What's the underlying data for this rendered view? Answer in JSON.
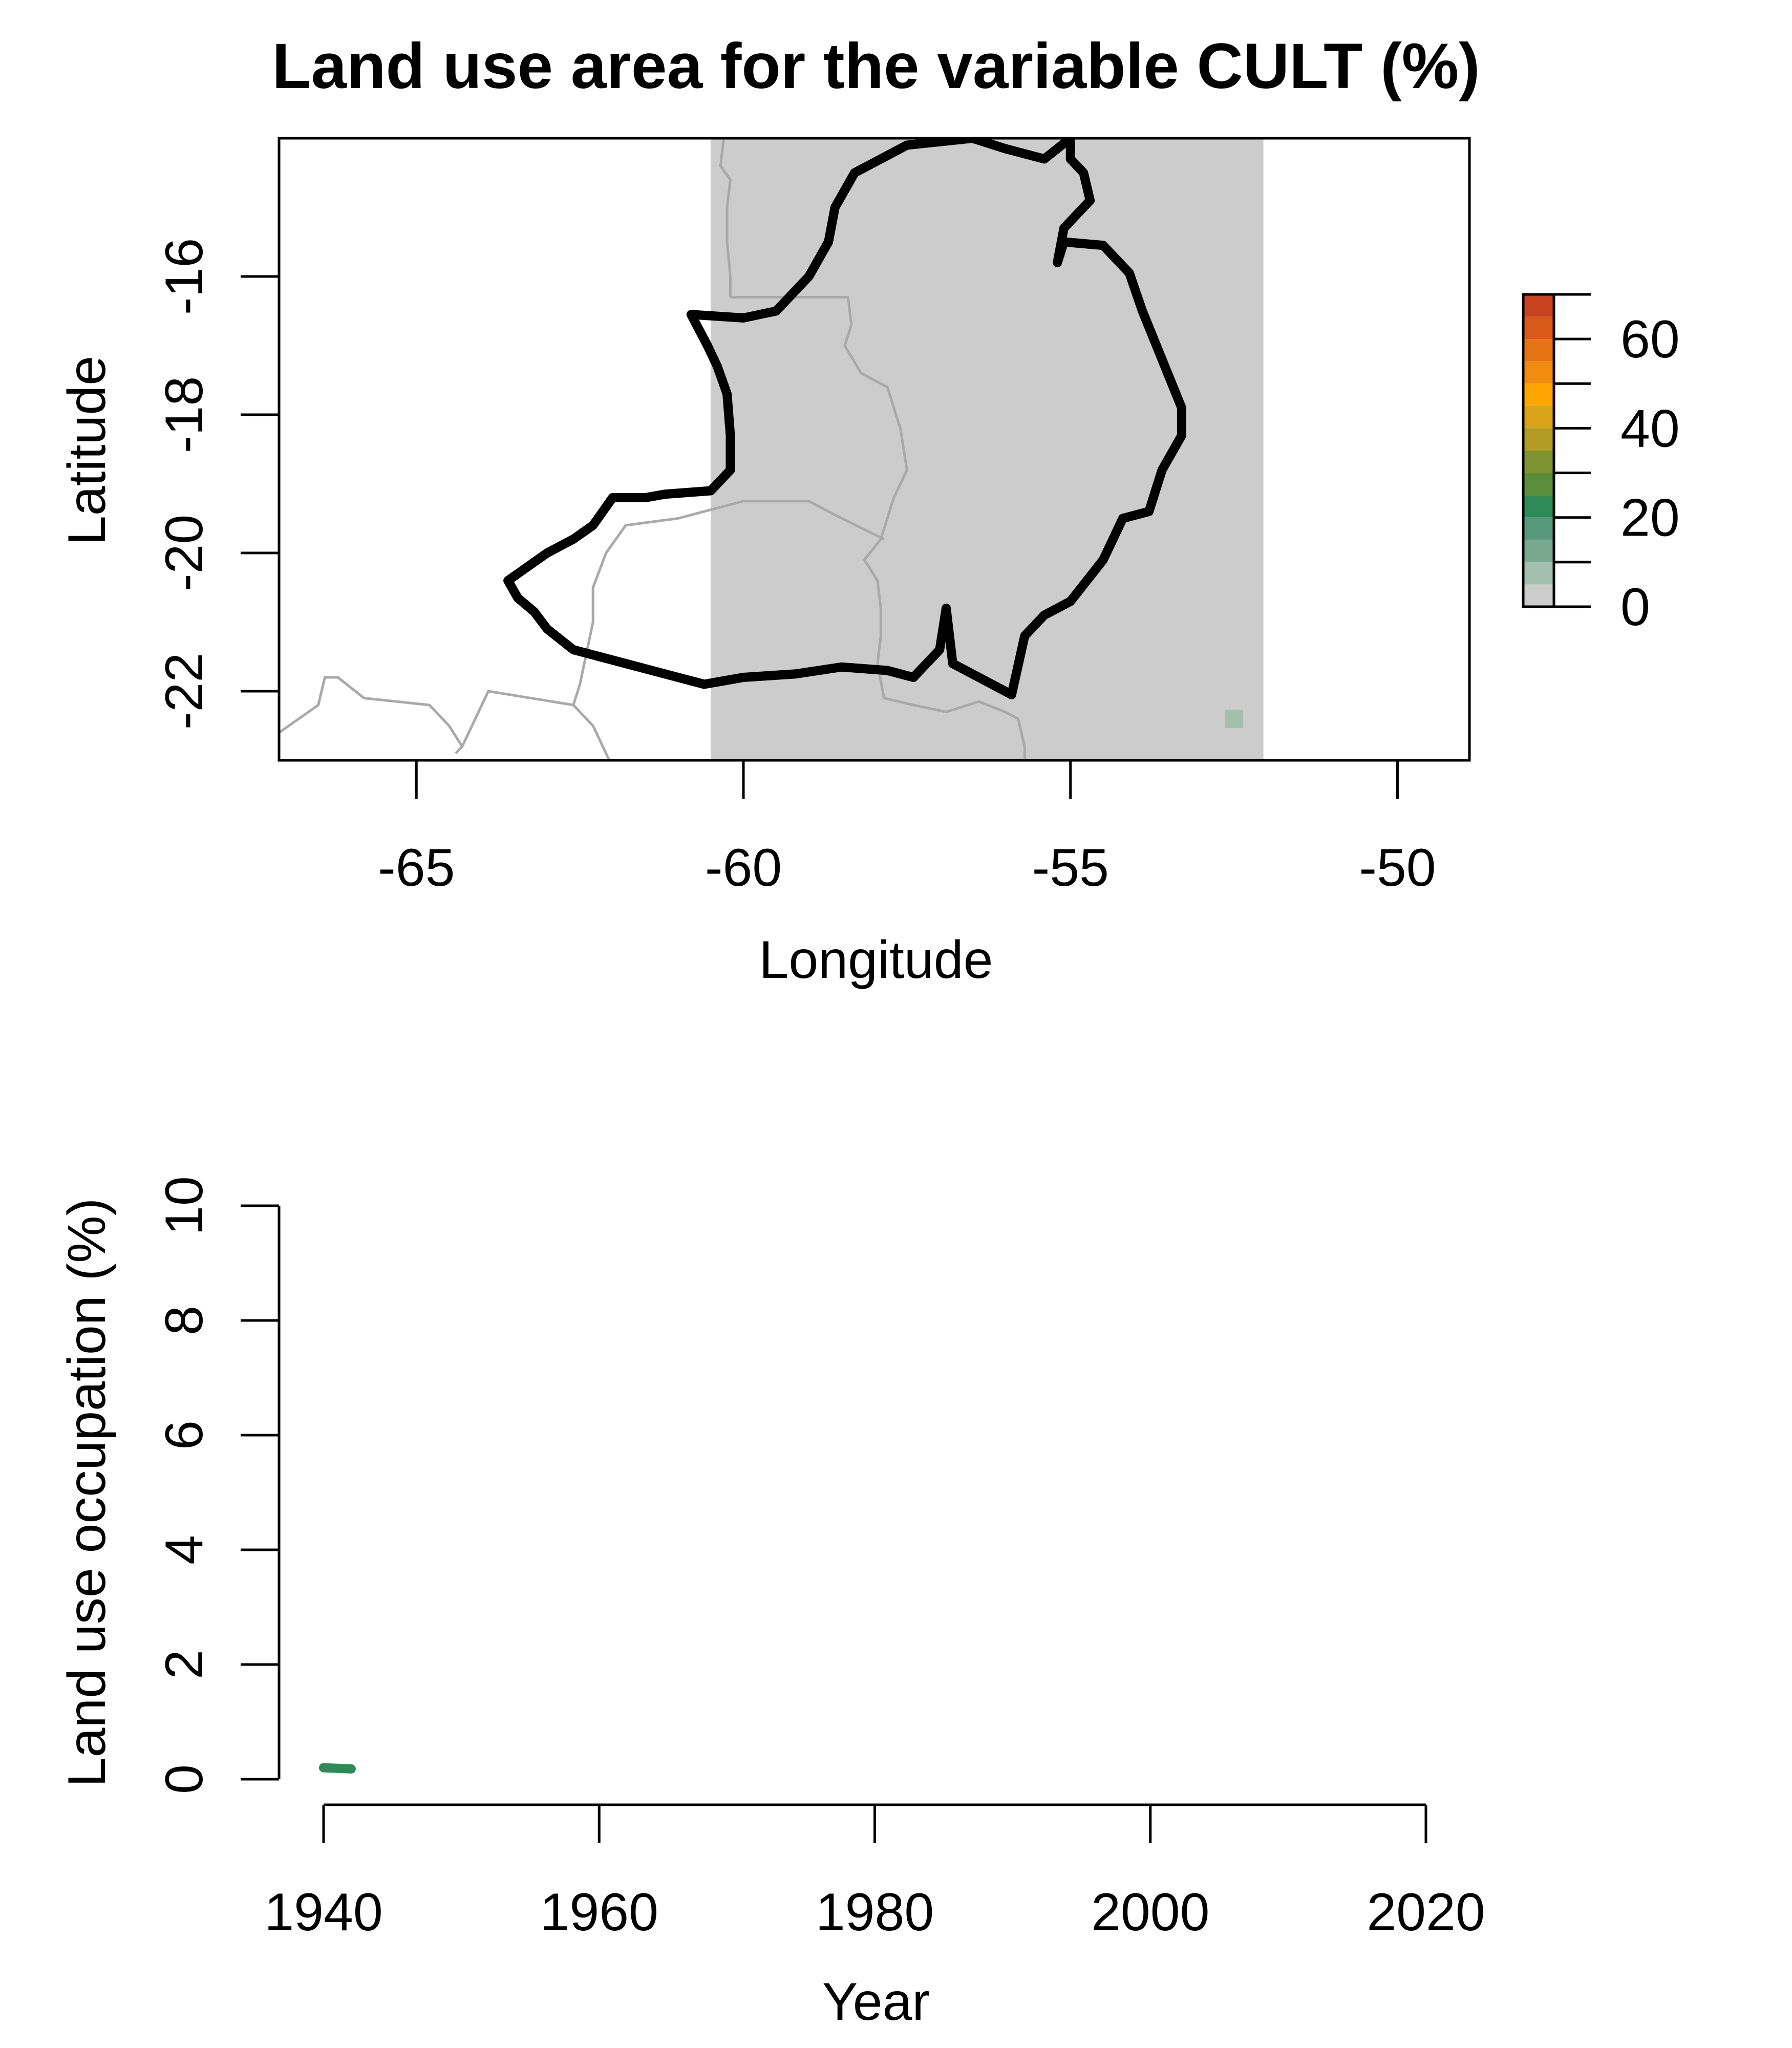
{
  "chart_data": [
    {
      "type": "map",
      "title": "Land use area for the variable CULT (%)",
      "xlabel": "Longitude",
      "ylabel": "Latitude",
      "xlim": [
        -67.1,
        -48.9
      ],
      "ylim": [
        -23.0,
        -14.0
      ],
      "xticks": [
        -65,
        -60,
        -55,
        -50
      ],
      "xtick_labels": [
        "-65",
        "-60",
        "-55",
        "-50"
      ],
      "yticks": [
        -16,
        -18,
        -20,
        -22
      ],
      "ytick_labels": [
        "-16",
        "-18",
        "-20",
        "-22"
      ],
      "raster_extent": {
        "lon": [
          -60.5,
          -52.05
        ],
        "lat": [
          -23.0,
          -14.0
        ]
      },
      "raster_fill_color": "#cccccc",
      "raster_cells": [
        {
          "lon": -52.5,
          "lat": -22.4,
          "value": 5
        }
      ],
      "legend": {
        "placement": "right",
        "breaks": [
          0,
          5,
          10,
          15,
          20,
          25,
          30,
          35,
          40,
          45,
          50,
          55,
          60,
          65,
          70
        ],
        "colors": [
          "#cccccc",
          "#a3bfae",
          "#78a98f",
          "#57977a",
          "#2e8b57",
          "#5b8e3b",
          "#7e9430",
          "#b39c24",
          "#d9a41a",
          "#ffa500",
          "#f28c10",
          "#e57316",
          "#d9591b",
          "#c84220",
          "#b22222"
        ],
        "ticks": [
          0,
          10,
          20,
          30,
          40,
          50,
          60,
          70
        ],
        "labels": [
          {
            "value": 0,
            "text": "0"
          },
          {
            "value": 20,
            "text": "20"
          },
          {
            "value": 40,
            "text": "40"
          },
          {
            "value": 60,
            "text": "60"
          }
        ]
      },
      "boundary_outline": [
        [
          -60.0,
          -16.6
        ],
        [
          -60.8,
          -16.55
        ],
        [
          -60.55,
          -17.0
        ],
        [
          -60.4,
          -17.3
        ],
        [
          -60.25,
          -17.7
        ],
        [
          -60.2,
          -18.3
        ],
        [
          -60.2,
          -18.8
        ],
        [
          -60.5,
          -19.1
        ],
        [
          -61.2,
          -19.15
        ],
        [
          -61.5,
          -19.2
        ],
        [
          -62.0,
          -19.2
        ],
        [
          -62.3,
          -19.6
        ],
        [
          -62.6,
          -19.8
        ],
        [
          -63.0,
          -20.0
        ],
        [
          -63.6,
          -20.4
        ],
        [
          -63.45,
          -20.65
        ],
        [
          -63.2,
          -20.85
        ],
        [
          -63.0,
          -21.1
        ],
        [
          -62.6,
          -21.4
        ],
        [
          -62.2,
          -21.5
        ],
        [
          -61.6,
          -21.65
        ],
        [
          -60.6,
          -21.9
        ],
        [
          -60.0,
          -21.8
        ],
        [
          -59.2,
          -21.75
        ],
        [
          -58.5,
          -21.65
        ],
        [
          -57.8,
          -21.7
        ],
        [
          -57.4,
          -21.8
        ],
        [
          -57.0,
          -21.4
        ],
        [
          -56.9,
          -20.8
        ],
        [
          -56.8,
          -21.6
        ],
        [
          -56.4,
          -21.8
        ],
        [
          -55.9,
          -22.05
        ],
        [
          -55.7,
          -21.2
        ],
        [
          -55.4,
          -20.9
        ],
        [
          -55.0,
          -20.7
        ],
        [
          -54.5,
          -20.1
        ],
        [
          -54.2,
          -19.5
        ],
        [
          -53.8,
          -19.4
        ],
        [
          -53.6,
          -18.8
        ],
        [
          -53.3,
          -18.3
        ],
        [
          -53.3,
          -17.9
        ],
        [
          -53.6,
          -17.2
        ],
        [
          -53.9,
          -16.5
        ],
        [
          -54.1,
          -15.95
        ],
        [
          -54.5,
          -15.55
        ],
        [
          -55.1,
          -15.5
        ],
        [
          -55.2,
          -15.8
        ],
        [
          -55.1,
          -15.3
        ],
        [
          -54.7,
          -14.9
        ],
        [
          -54.8,
          -14.5
        ],
        [
          -55.0,
          -14.3
        ],
        [
          -55.0,
          -14.0
        ],
        [
          -55.4,
          -14.3
        ],
        [
          -56.0,
          -14.15
        ],
        [
          -56.5,
          -14.0
        ],
        [
          -57.5,
          -14.1
        ],
        [
          -58.3,
          -14.5
        ],
        [
          -58.6,
          -15.0
        ],
        [
          -58.7,
          -15.5
        ],
        [
          -59.0,
          -16.0
        ],
        [
          -59.5,
          -16.5
        ],
        [
          -60.0,
          -16.6
        ]
      ],
      "borders": [
        [
          [
            -60.3,
            -14.0
          ],
          [
            -60.35,
            -14.4
          ],
          [
            -60.2,
            -14.6
          ],
          [
            -60.25,
            -15.0
          ],
          [
            -60.25,
            -15.5
          ],
          [
            -60.2,
            -16.0
          ],
          [
            -60.2,
            -16.3
          ]
        ],
        [
          [
            -60.2,
            -16.3
          ],
          [
            -58.4,
            -16.3
          ],
          [
            -58.35,
            -16.7
          ],
          [
            -58.45,
            -17.0
          ],
          [
            -58.2,
            -17.4
          ],
          [
            -57.8,
            -17.6
          ],
          [
            -57.6,
            -18.2
          ],
          [
            -57.5,
            -18.8
          ],
          [
            -57.7,
            -19.2
          ],
          [
            -57.9,
            -19.8
          ],
          [
            -58.15,
            -20.1
          ],
          [
            -57.95,
            -20.4
          ],
          [
            -57.9,
            -20.8
          ],
          [
            -57.9,
            -21.2
          ],
          [
            -57.95,
            -21.6
          ],
          [
            -57.85,
            -22.1
          ],
          [
            -57.4,
            -22.2
          ],
          [
            -56.9,
            -22.3
          ],
          [
            -56.4,
            -22.15
          ],
          [
            -56.0,
            -22.3
          ],
          [
            -55.8,
            -22.4
          ],
          [
            -55.7,
            -22.8
          ],
          [
            -55.7,
            -23.0
          ]
        ],
        [
          [
            -57.85,
            -19.8
          ],
          [
            -58.6,
            -19.45
          ],
          [
            -59.0,
            -19.25
          ],
          [
            -60.0,
            -19.25
          ],
          [
            -61.0,
            -19.5
          ],
          [
            -61.8,
            -19.6
          ],
          [
            -62.1,
            -20.0
          ],
          [
            -62.3,
            -20.5
          ],
          [
            -62.3,
            -21.0
          ],
          [
            -62.5,
            -21.9
          ],
          [
            -62.6,
            -22.2
          ],
          [
            -62.3,
            -22.5
          ],
          [
            -62.05,
            -23.0
          ]
        ],
        [
          [
            -62.6,
            -22.2
          ],
          [
            -63.9,
            -22.0
          ],
          [
            -64.3,
            -22.8
          ],
          [
            -64.4,
            -22.9
          ]
        ],
        [
          [
            -64.3,
            -22.8
          ],
          [
            -64.5,
            -22.5
          ],
          [
            -64.8,
            -22.2
          ],
          [
            -65.8,
            -22.1
          ],
          [
            -66.2,
            -21.8
          ],
          [
            -66.4,
            -21.8
          ],
          [
            -66.5,
            -22.2
          ],
          [
            -66.8,
            -22.4
          ],
          [
            -67.1,
            -22.6
          ]
        ]
      ]
    },
    {
      "type": "line",
      "xlabel": "Year",
      "ylabel": "Land use occupation (%)",
      "xlim": [
        1940,
        2020
      ],
      "ylim": [
        0,
        10
      ],
      "xticks": [
        1940,
        1960,
        1980,
        2000,
        2020
      ],
      "xtick_labels": [
        "1940",
        "1960",
        "1980",
        "2000",
        "2020"
      ],
      "yticks": [
        0,
        2,
        4,
        6,
        8,
        10
      ],
      "ytick_labels": [
        "0",
        "2",
        "4",
        "6",
        "8",
        "10"
      ],
      "series": [
        {
          "color": "#2e8b57",
          "x": [
            1940,
            1941,
            1942
          ],
          "y": [
            0.2,
            0.19,
            0.18
          ]
        }
      ]
    }
  ]
}
